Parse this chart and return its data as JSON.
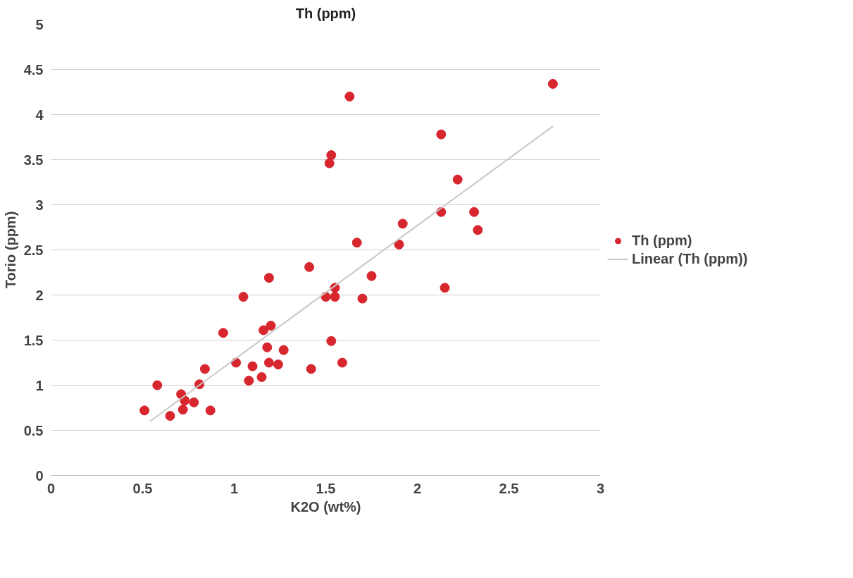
{
  "chart_data": {
    "type": "scatter",
    "title": "Th (ppm)",
    "xlabel": "K2O (wt%)",
    "ylabel": "Torio (ppm)",
    "xlim": [
      0,
      3
    ],
    "xticks": [
      0,
      0.5,
      1,
      1.5,
      2,
      2.5,
      3
    ],
    "ylim": [
      0,
      5
    ],
    "yticks": [
      0,
      0.5,
      1,
      1.5,
      2,
      2.5,
      3,
      3.5,
      4,
      4.5,
      5
    ],
    "grid": "y",
    "legend": "right",
    "series": [
      {
        "name": "Th (ppm)",
        "marker": "circle",
        "color": "#d7262e",
        "x": [
          0.51,
          0.58,
          0.65,
          0.71,
          0.72,
          0.73,
          0.78,
          0.81,
          0.84,
          0.87,
          0.94,
          1.01,
          1.05,
          1.08,
          1.1,
          1.15,
          1.16,
          1.18,
          1.19,
          1.19,
          1.2,
          1.24,
          1.27,
          1.41,
          1.42,
          1.5,
          1.52,
          1.53,
          1.53,
          1.55,
          1.55,
          1.59,
          1.63,
          1.67,
          1.7,
          1.75,
          1.9,
          1.92,
          2.13,
          2.13,
          2.15,
          2.22,
          2.31,
          2.33,
          2.74
        ],
        "values": [
          0.72,
          1.0,
          0.66,
          0.9,
          0.73,
          0.83,
          0.81,
          1.01,
          1.18,
          0.72,
          1.58,
          1.25,
          1.98,
          1.05,
          1.21,
          1.09,
          1.61,
          1.42,
          1.25,
          2.19,
          1.66,
          1.23,
          1.39,
          2.31,
          1.18,
          1.98,
          3.46,
          3.55,
          1.49,
          2.08,
          1.98,
          1.25,
          4.2,
          2.58,
          1.96,
          2.21,
          2.56,
          2.79,
          3.78,
          2.92,
          2.08,
          3.28,
          2.92,
          2.72,
          4.34
        ]
      },
      {
        "name": "Linear (Th (ppm))",
        "type": "line",
        "color": "#c8c8c8",
        "x": [
          0.54,
          2.74
        ],
        "values": [
          0.6,
          3.87
        ]
      }
    ]
  }
}
